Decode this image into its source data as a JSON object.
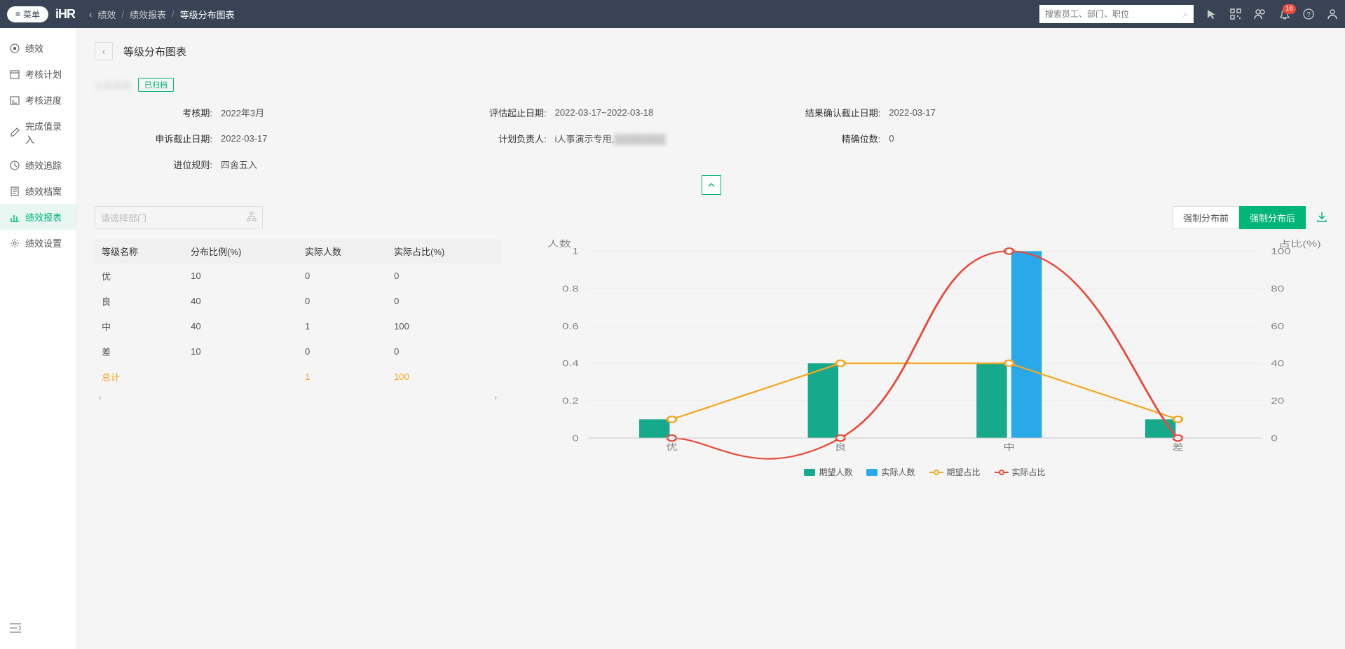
{
  "header": {
    "menu_label": "菜单",
    "logo": "iHR",
    "breadcrumb": [
      "绩效",
      "绩效报表",
      "等级分布图表"
    ],
    "search_placeholder": "搜索员工、部门、职位",
    "notification_count": "16"
  },
  "sidebar": {
    "items": [
      {
        "icon": "target",
        "label": "绩效"
      },
      {
        "icon": "calendar",
        "label": "考核计划"
      },
      {
        "icon": "progress",
        "label": "考核进度"
      },
      {
        "icon": "edit",
        "label": "完成值录入"
      },
      {
        "icon": "track",
        "label": "绩效追踪"
      },
      {
        "icon": "archive",
        "label": "绩效档案"
      },
      {
        "icon": "chart",
        "label": "绩效报表"
      },
      {
        "icon": "settings",
        "label": "绩效设置"
      }
    ],
    "active_index": 6
  },
  "page": {
    "title": "等级分布图表",
    "plan_name": "计划名称",
    "archived_tag": "已归档",
    "info": [
      {
        "label": "考核期:",
        "value": "2022年3月"
      },
      {
        "label": "评估起止日期:",
        "value": "2022-03-17~2022-03-18"
      },
      {
        "label": "结果确认截止日期:",
        "value": "2022-03-17"
      },
      {
        "label": "申诉截止日期:",
        "value": "2022-03-17"
      },
      {
        "label": "计划负责人:",
        "value": "i人事演示专用,",
        "blur_suffix": true
      },
      {
        "label": "精确位数:",
        "value": "0"
      },
      {
        "label": "进位规则:",
        "value": "四舍五入"
      }
    ],
    "dept_placeholder": "请选择部门",
    "table": {
      "columns": [
        "等级名称",
        "分布比例(%)",
        "实际人数",
        "实际占比(%)"
      ],
      "rows": [
        [
          "优",
          "10",
          "0",
          "0"
        ],
        [
          "良",
          "40",
          "0",
          "0"
        ],
        [
          "中",
          "40",
          "1",
          "100"
        ],
        [
          "差",
          "10",
          "0",
          "0"
        ]
      ],
      "total_row": [
        "总计",
        "",
        "1",
        "100"
      ]
    },
    "buttons": {
      "before": "强制分布前",
      "after": "强制分布后"
    },
    "chart": {
      "y_left_label": "人数",
      "y_right_label": "占比(%)",
      "categories": [
        "优",
        "良",
        "中",
        "差"
      ],
      "expected_count": [
        0.1,
        0.4,
        0.4,
        0.1
      ],
      "actual_count": [
        0,
        0,
        1,
        0
      ],
      "expected_ratio": [
        10,
        40,
        40,
        10
      ],
      "actual_ratio": [
        0,
        0,
        100,
        0
      ],
      "y_left_ticks": [
        0,
        0.2,
        0.4,
        0.6,
        0.8,
        1
      ],
      "y_right_ticks": [
        0,
        20,
        40,
        60,
        80,
        100
      ],
      "colors": {
        "expected_bar": "#17a98c",
        "actual_bar": "#29a9ea",
        "expected_line": "#f5a623",
        "actual_line": "#e74c3c",
        "grid": "#eeeeee",
        "axis": "#cccccc"
      },
      "legend": [
        {
          "type": "swatch",
          "color": "#17a98c",
          "label": "期望人数"
        },
        {
          "type": "swatch",
          "color": "#29a9ea",
          "label": "实际人数"
        },
        {
          "type": "line",
          "color": "#f5a623",
          "label": "期望占比"
        },
        {
          "type": "line",
          "color": "#e74c3c",
          "label": "实际占比"
        }
      ]
    }
  }
}
